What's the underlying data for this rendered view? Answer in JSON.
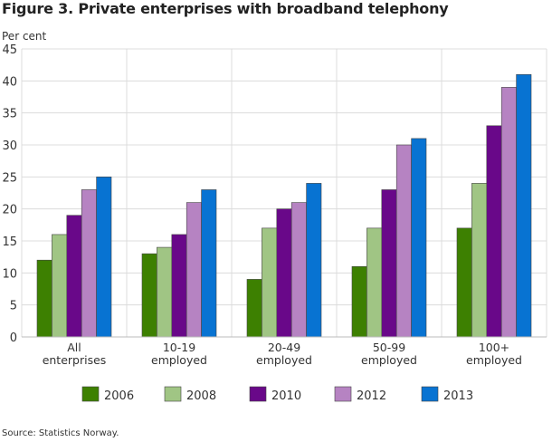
{
  "chart_data": {
    "type": "bar",
    "title": "Figure 3. Private enterprises with broadband telephony",
    "ylabel": "Per cent",
    "xlabel": "",
    "ylim": [
      0,
      45
    ],
    "yticks": [
      0,
      5,
      10,
      15,
      20,
      25,
      30,
      35,
      40,
      45
    ],
    "grid": true,
    "legend_position": "bottom",
    "categories": [
      [
        "All",
        "enterprises"
      ],
      [
        "10-19",
        "employed"
      ],
      [
        "20-49",
        "employed"
      ],
      [
        "50-99",
        "employed"
      ],
      [
        "100+",
        "employed"
      ]
    ],
    "series": [
      {
        "name": "2006",
        "color": "#3d8001",
        "values": [
          12,
          13,
          9,
          11,
          17
        ]
      },
      {
        "name": "2008",
        "color": "#a0c584",
        "values": [
          16,
          14,
          17,
          17,
          24
        ]
      },
      {
        "name": "2010",
        "color": "#690889",
        "values": [
          19,
          16,
          20,
          23,
          33
        ]
      },
      {
        "name": "2012",
        "color": "#b683c2",
        "values": [
          23,
          21,
          21,
          30,
          39
        ]
      },
      {
        "name": "2013",
        "color": "#0873d2",
        "values": [
          25,
          23,
          24,
          31,
          41
        ]
      }
    ]
  },
  "source": "Source: Statistics Norway."
}
